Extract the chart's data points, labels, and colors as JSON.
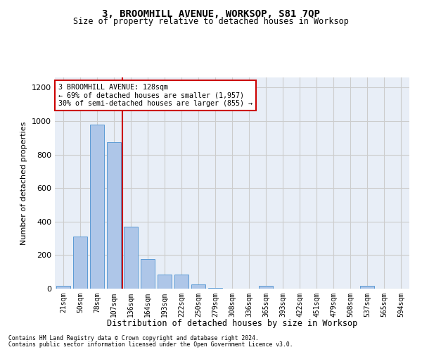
{
  "title": "3, BROOMHILL AVENUE, WORKSOP, S81 7QP",
  "subtitle": "Size of property relative to detached houses in Worksop",
  "xlabel": "Distribution of detached houses by size in Worksop",
  "ylabel": "Number of detached properties",
  "categories": [
    "21sqm",
    "50sqm",
    "78sqm",
    "107sqm",
    "136sqm",
    "164sqm",
    "193sqm",
    "222sqm",
    "250sqm",
    "279sqm",
    "308sqm",
    "336sqm",
    "365sqm",
    "393sqm",
    "422sqm",
    "451sqm",
    "479sqm",
    "508sqm",
    "537sqm",
    "565sqm",
    "594sqm"
  ],
  "values": [
    15,
    310,
    980,
    875,
    370,
    175,
    85,
    85,
    25,
    5,
    0,
    0,
    15,
    0,
    0,
    0,
    0,
    0,
    15,
    0,
    0
  ],
  "bar_color": "#aec6e8",
  "bar_edge_color": "#5b9bd5",
  "vline_position": 3.5,
  "vline_color": "#cc0000",
  "annotation_lines": [
    "3 BROOMHILL AVENUE: 128sqm",
    "← 69% of detached houses are smaller (1,957)",
    "30% of semi-detached houses are larger (855) →"
  ],
  "annotation_box_color": "#cc0000",
  "ylim": [
    0,
    1260
  ],
  "yticks": [
    0,
    200,
    400,
    600,
    800,
    1000,
    1200
  ],
  "grid_color": "#cccccc",
  "bg_color": "#e8eef7",
  "footer1": "Contains HM Land Registry data © Crown copyright and database right 2024.",
  "footer2": "Contains public sector information licensed under the Open Government Licence v3.0."
}
